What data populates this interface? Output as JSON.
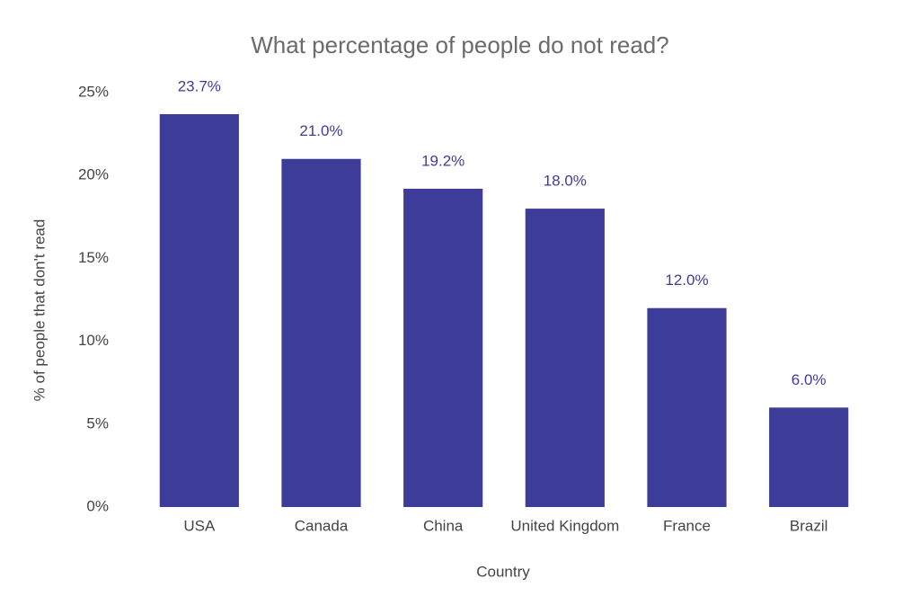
{
  "chart_data": {
    "type": "bar",
    "title": "What percentage of people do not read?",
    "x_label": "Country",
    "y_label": "% of people that don't read",
    "categories": [
      "USA",
      "Canada",
      "China",
      "United Kingdom",
      "France",
      "Brazil"
    ],
    "values": [
      23.7,
      21.0,
      19.2,
      18.0,
      12.0,
      6.0
    ],
    "value_labels": [
      "23.7%",
      "21.0%",
      "19.2%",
      "18.0%",
      "12.0%",
      "6.0%"
    ],
    "color": "#3d3d99",
    "ylim": [
      0,
      25
    ],
    "yticks": [
      {
        "value": 0,
        "label": "0%"
      },
      {
        "value": 5,
        "label": "5%"
      },
      {
        "value": 10,
        "label": "10%"
      },
      {
        "value": 15,
        "label": "15%"
      },
      {
        "value": 20,
        "label": "20%"
      },
      {
        "value": 25,
        "label": "25%"
      }
    ],
    "grid": false
  }
}
